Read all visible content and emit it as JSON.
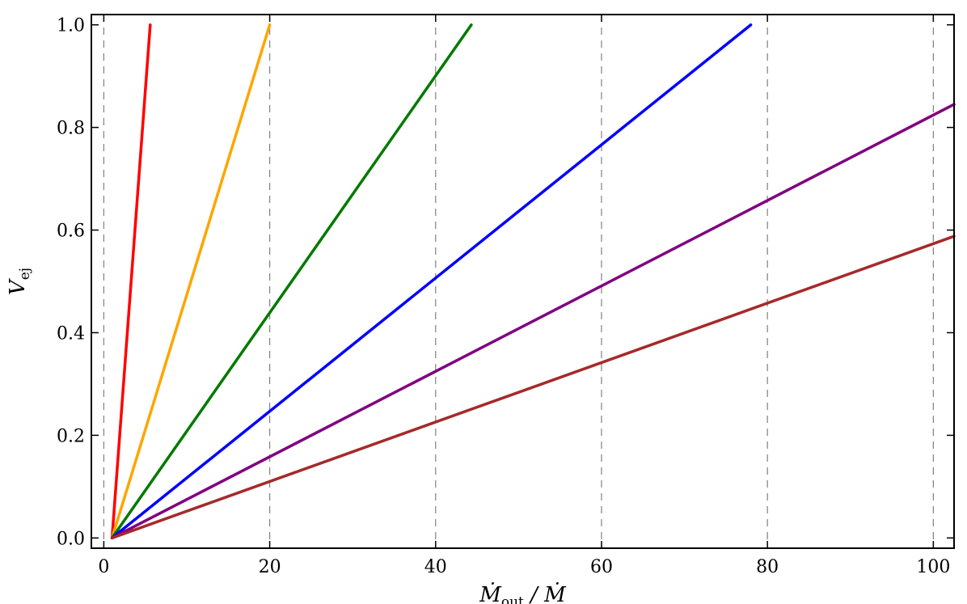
{
  "chart_data": {
    "type": "line",
    "title": "",
    "xlabel": "Ṁ_out / Ṁ",
    "xlabel_parts": {
      "main": "Ṁ",
      "sub": "out",
      "rest": " / Ṁ"
    },
    "ylabel": "V_ej",
    "ylabel_parts": {
      "main": "V",
      "sub": "ej"
    },
    "xlim": [
      -1.5,
      102.5
    ],
    "ylim": [
      -0.02,
      1.02
    ],
    "x_ticks": [
      0,
      20,
      40,
      60,
      80,
      100
    ],
    "x_tick_labels": [
      "0",
      "20",
      "40",
      "60",
      "80",
      "100"
    ],
    "y_ticks": [
      0.0,
      0.2,
      0.4,
      0.6,
      0.8,
      1.0
    ],
    "y_tick_labels": [
      "0.0",
      "0.2",
      "0.4",
      "0.6",
      "0.8",
      "1.0"
    ],
    "grid": {
      "x": true,
      "y": false,
      "style": "dashed"
    },
    "legend": "none",
    "series": [
      {
        "color": "#ff0000",
        "x": [
          1,
          5.6
        ],
        "y": [
          0.0,
          1.0
        ]
      },
      {
        "color": "#ffa500",
        "x": [
          1,
          20
        ],
        "y": [
          0.0,
          1.0
        ]
      },
      {
        "color": "#007a00",
        "x": [
          1,
          44.3
        ],
        "y": [
          0.0,
          1.0
        ]
      },
      {
        "color": "#0000ff",
        "x": [
          1,
          78
        ],
        "y": [
          0.0,
          1.0
        ]
      },
      {
        "color": "#800080",
        "x": [
          1,
          102.5
        ],
        "y": [
          0.0,
          0.845
        ]
      },
      {
        "color": "#a52a2a",
        "x": [
          1,
          102.5
        ],
        "y": [
          0.0,
          0.588
        ]
      }
    ]
  }
}
